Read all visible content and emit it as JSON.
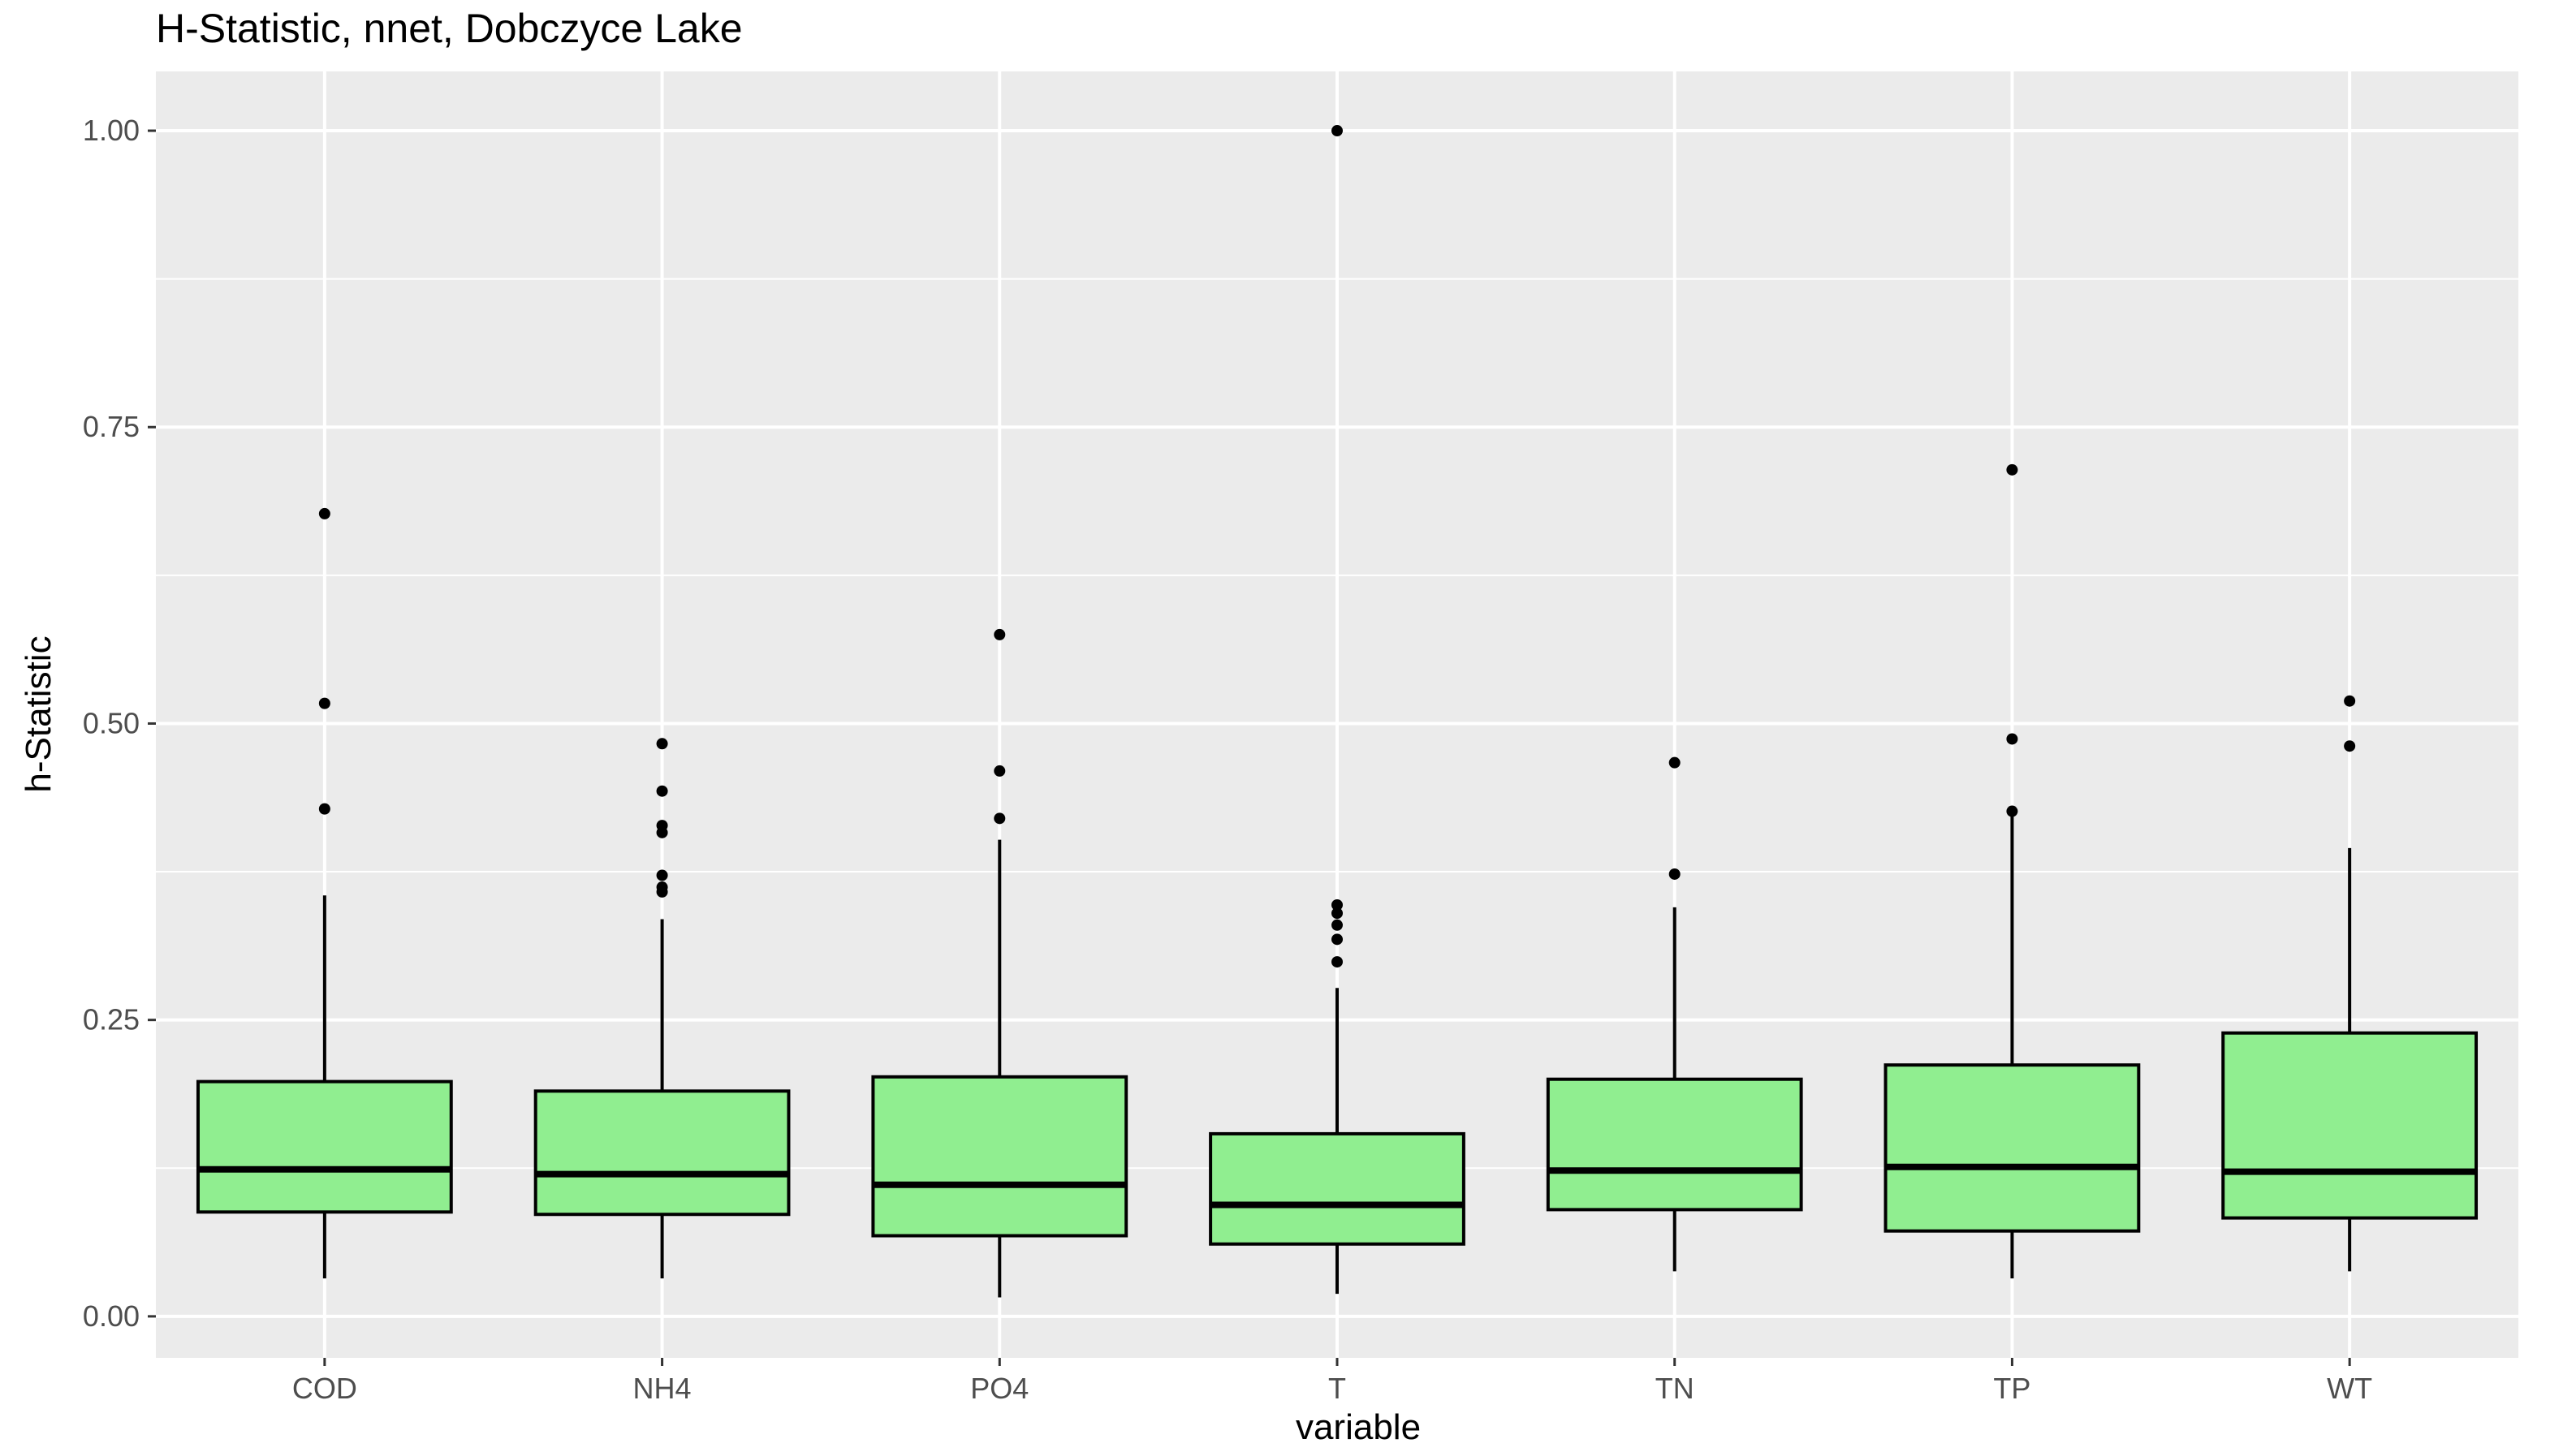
{
  "chart_data": {
    "type": "boxplot",
    "title": "H-Statistic, nnet, Dobczyce Lake",
    "xlabel": "variable",
    "ylabel": "h-Statistic",
    "ylim": [
      -0.035,
      1.05
    ],
    "yticks": [
      0.0,
      0.25,
      0.5,
      0.75,
      1.0
    ],
    "ytick_labels": [
      "0.00",
      "0.25",
      "0.50",
      "0.75",
      "1.00"
    ],
    "grid": true,
    "legend": "none",
    "colors": {
      "panel": "#ebebeb",
      "grid": "#ffffff",
      "box_fill": "#90ee90",
      "box_stroke": "#000000",
      "outlier": "#000000",
      "tick_text": "#4d4d4d",
      "tick_mark": "#333333"
    },
    "categories": [
      "COD",
      "NH4",
      "PO4",
      "T",
      "TN",
      "TP",
      "WT"
    ],
    "boxes": [
      {
        "category": "COD",
        "lower_whisker": 0.032,
        "q1": 0.088,
        "median": 0.124,
        "q3": 0.198,
        "upper_whisker": 0.355,
        "outliers": [
          0.428,
          0.517,
          0.677
        ]
      },
      {
        "category": "NH4",
        "lower_whisker": 0.032,
        "q1": 0.086,
        "median": 0.12,
        "q3": 0.19,
        "upper_whisker": 0.335,
        "outliers": [
          0.358,
          0.362,
          0.372,
          0.408,
          0.414,
          0.443,
          0.483
        ]
      },
      {
        "category": "PO4",
        "lower_whisker": 0.016,
        "q1": 0.068,
        "median": 0.111,
        "q3": 0.202,
        "upper_whisker": 0.402,
        "outliers": [
          0.42,
          0.46,
          0.575
        ]
      },
      {
        "category": "T",
        "lower_whisker": 0.019,
        "q1": 0.061,
        "median": 0.094,
        "q3": 0.154,
        "upper_whisker": 0.277,
        "outliers": [
          0.299,
          0.318,
          0.33,
          0.34,
          0.347,
          1.0
        ]
      },
      {
        "category": "TN",
        "lower_whisker": 0.038,
        "q1": 0.09,
        "median": 0.123,
        "q3": 0.2,
        "upper_whisker": 0.345,
        "outliers": [
          0.373,
          0.467
        ]
      },
      {
        "category": "TP",
        "lower_whisker": 0.032,
        "q1": 0.072,
        "median": 0.126,
        "q3": 0.212,
        "upper_whisker": 0.422,
        "outliers": [
          0.426,
          0.487,
          0.714
        ]
      },
      {
        "category": "WT",
        "lower_whisker": 0.038,
        "q1": 0.083,
        "median": 0.122,
        "q3": 0.239,
        "upper_whisker": 0.395,
        "outliers": [
          0.481,
          0.519
        ]
      }
    ]
  }
}
